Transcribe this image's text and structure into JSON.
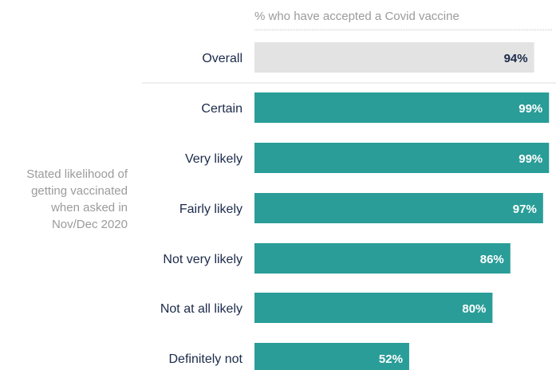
{
  "chart_data": {
    "type": "bar",
    "orientation": "horizontal",
    "title": "% who have accepted a Covid vaccine",
    "group_label": "Stated likelihood of getting vaccinated when asked in Nov/Dec 2020",
    "group_label_lines": [
      "Stated likelihood of",
      "getting vaccinated",
      "when asked in",
      "Nov/Dec 2020"
    ],
    "overall": {
      "category": "Overall",
      "value": 94,
      "label": "94%"
    },
    "categories": [
      "Certain",
      "Very likely",
      "Fairly likely",
      "Not very likely",
      "Not at all likely",
      "Definitely not"
    ],
    "values": [
      99,
      99,
      97,
      86,
      80,
      52
    ],
    "value_labels": [
      "99%",
      "99%",
      "97%",
      "86%",
      "80%",
      "52%"
    ],
    "xlim": [
      0,
      100
    ],
    "colors": {
      "overall_bar": "#e3e3e3",
      "bar": "#2a9d98",
      "overall_text": "#1b2a4a",
      "bar_text": "#ffffff",
      "category_text": "#1b2a4a"
    }
  }
}
